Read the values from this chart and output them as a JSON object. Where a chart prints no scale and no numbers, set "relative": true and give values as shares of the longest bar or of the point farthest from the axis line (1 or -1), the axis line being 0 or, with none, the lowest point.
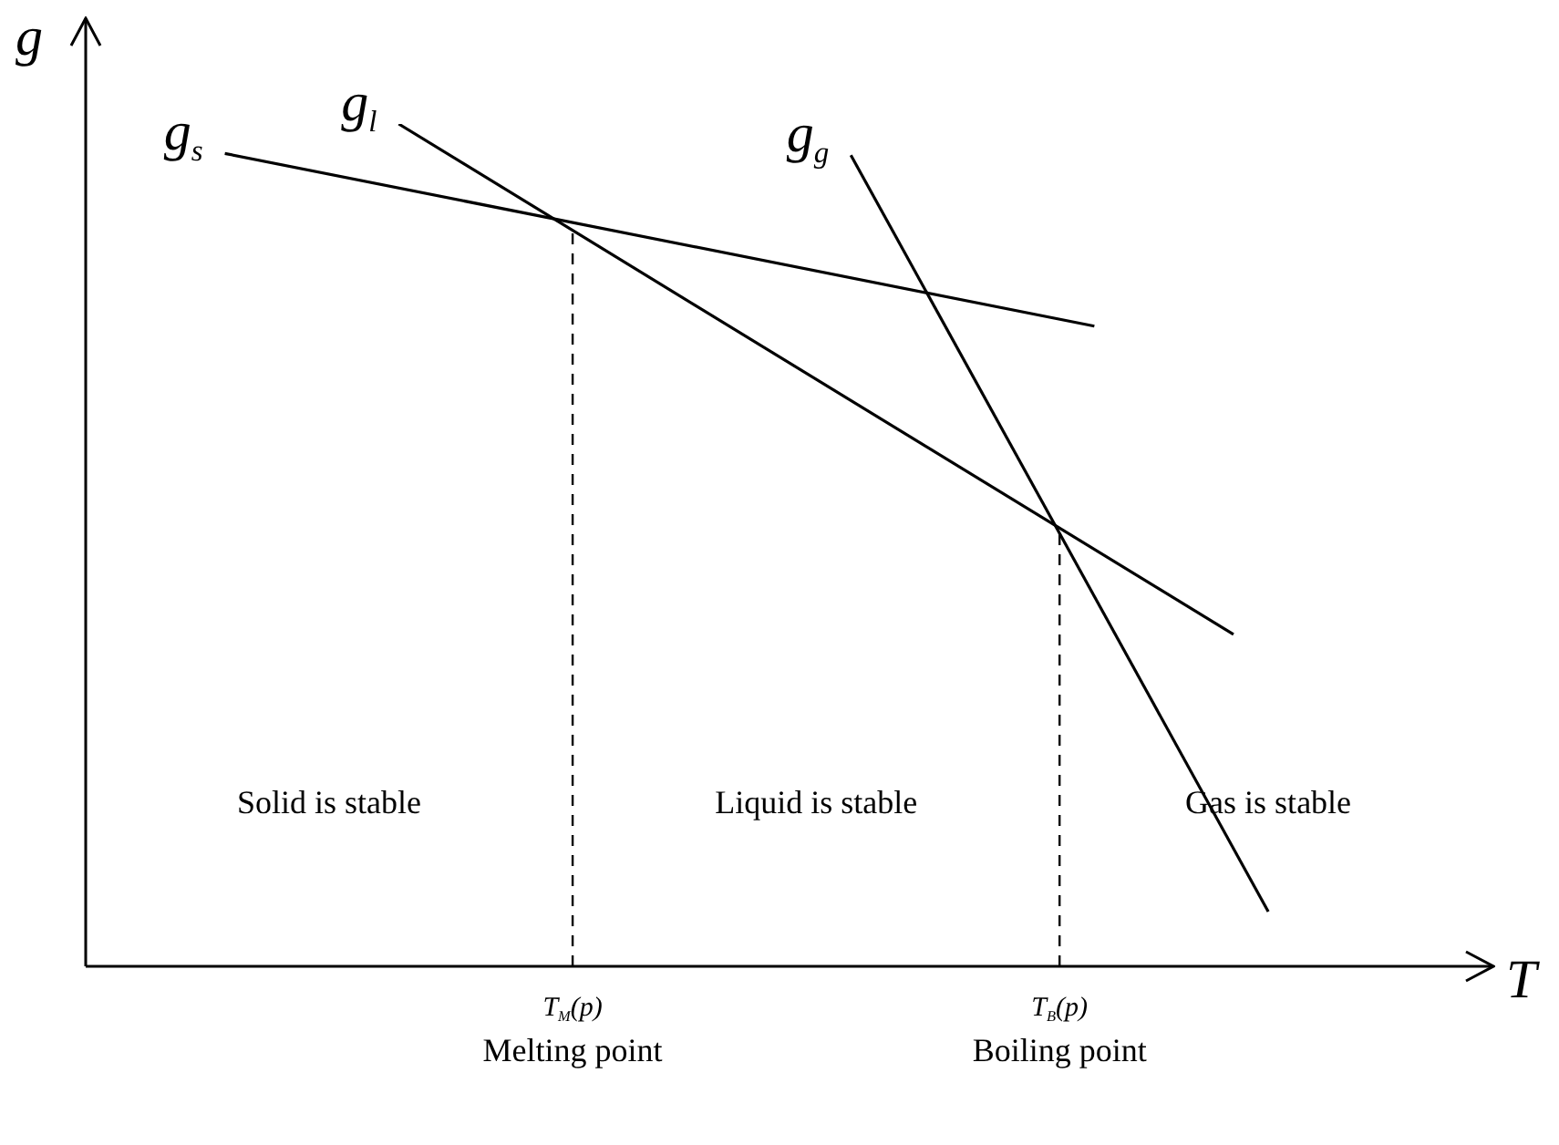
{
  "chart_data": {
    "type": "line",
    "relative": true,
    "xlabel": "T",
    "ylabel": "g",
    "legend": false,
    "marker": "none",
    "line_style": "solid",
    "categories": [
      null,
      null,
      null,
      null,
      null,
      null,
      null,
      null,
      null,
      null,
      null,
      null,
      null,
      null,
      null,
      null,
      null,
      null,
      null,
      null,
      null,
      null,
      null,
      null,
      null,
      null,
      null,
      null,
      "T$_{M}$(p)",
      null,
      null,
      null,
      null,
      null,
      null,
      null,
      null,
      null,
      null,
      null,
      null,
      null,
      null,
      null,
      null,
      null,
      null,
      null,
      null,
      null,
      null,
      null,
      null,
      null,
      null,
      null,
      "T$_{B}$(p)",
      null,
      null,
      null,
      null,
      null,
      null,
      null,
      null,
      null,
      null,
      null,
      null,
      null,
      null,
      null,
      null,
      null,
      null,
      null,
      null,
      null,
      null,
      null,
      null
    ],
    "series": [
      {
        "name": "g$_{s}$",
        "color": "#000000",
        "values": [
          null,
          null,
          null,
          null,
          null,
          null,
          null,
          null,
          0.965,
          null,
          null,
          null,
          null,
          null,
          null,
          null,
          null,
          null,
          null,
          null,
          null,
          null,
          null,
          null,
          null,
          null,
          null,
          null,
          null,
          null,
          null,
          null,
          null,
          null,
          null,
          null,
          null,
          null,
          null,
          null,
          null,
          null,
          null,
          null,
          null,
          null,
          null,
          null,
          null,
          null,
          null,
          null,
          null,
          null,
          null,
          null,
          null,
          null,
          0.76,
          null,
          null,
          null,
          null,
          null,
          null,
          null,
          null,
          null,
          null,
          null,
          null,
          null,
          null,
          null,
          null,
          null,
          null,
          null,
          null,
          null,
          null
        ]
      },
      {
        "name": "g$_{l}$",
        "color": "#000000",
        "values": [
          null,
          null,
          null,
          null,
          null,
          null,
          null,
          null,
          null,
          null,
          null,
          null,
          null,
          null,
          null,
          null,
          null,
          null,
          1,
          null,
          null,
          null,
          null,
          null,
          null,
          null,
          null,
          null,
          null,
          null,
          null,
          null,
          null,
          null,
          null,
          null,
          null,
          null,
          null,
          null,
          null,
          null,
          null,
          null,
          null,
          null,
          null,
          null,
          null,
          null,
          null,
          null,
          null,
          null,
          null,
          null,
          null,
          null,
          null,
          null,
          null,
          null,
          null,
          null,
          null,
          null,
          0.394,
          null,
          null,
          null,
          null,
          null,
          null,
          null,
          null,
          null,
          null,
          null,
          null,
          null,
          null
        ]
      },
      {
        "name": "g$_{g}$",
        "color": "#000000",
        "values": [
          null,
          null,
          null,
          null,
          null,
          null,
          null,
          null,
          null,
          null,
          null,
          null,
          null,
          null,
          null,
          null,
          null,
          null,
          null,
          null,
          null,
          null,
          null,
          null,
          null,
          null,
          null,
          null,
          null,
          null,
          null,
          null,
          null,
          null,
          null,
          null,
          null,
          null,
          null,
          null,
          null,
          null,
          null,
          null,
          0.963,
          null,
          null,
          null,
          null,
          null,
          null,
          null,
          null,
          null,
          null,
          null,
          null,
          null,
          null,
          null,
          null,
          null,
          null,
          null,
          null,
          null,
          null,
          null,
          0.065,
          null,
          null,
          null,
          null,
          null,
          null,
          null,
          null,
          null,
          null,
          null,
          null
        ]
      }
    ],
    "ref_lines": [
      {
        "axis": "x",
        "value": "T$_{M}$(p)",
        "label": "Melting point",
        "line_style": "dashed"
      },
      {
        "axis": "x",
        "value": "T$_{B}$(p)",
        "label": "Boiling point",
        "line_style": "dashed"
      }
    ],
    "annotations": [
      "Solid is stable",
      "Liquid is stable",
      "Gas is stable"
    ]
  }
}
